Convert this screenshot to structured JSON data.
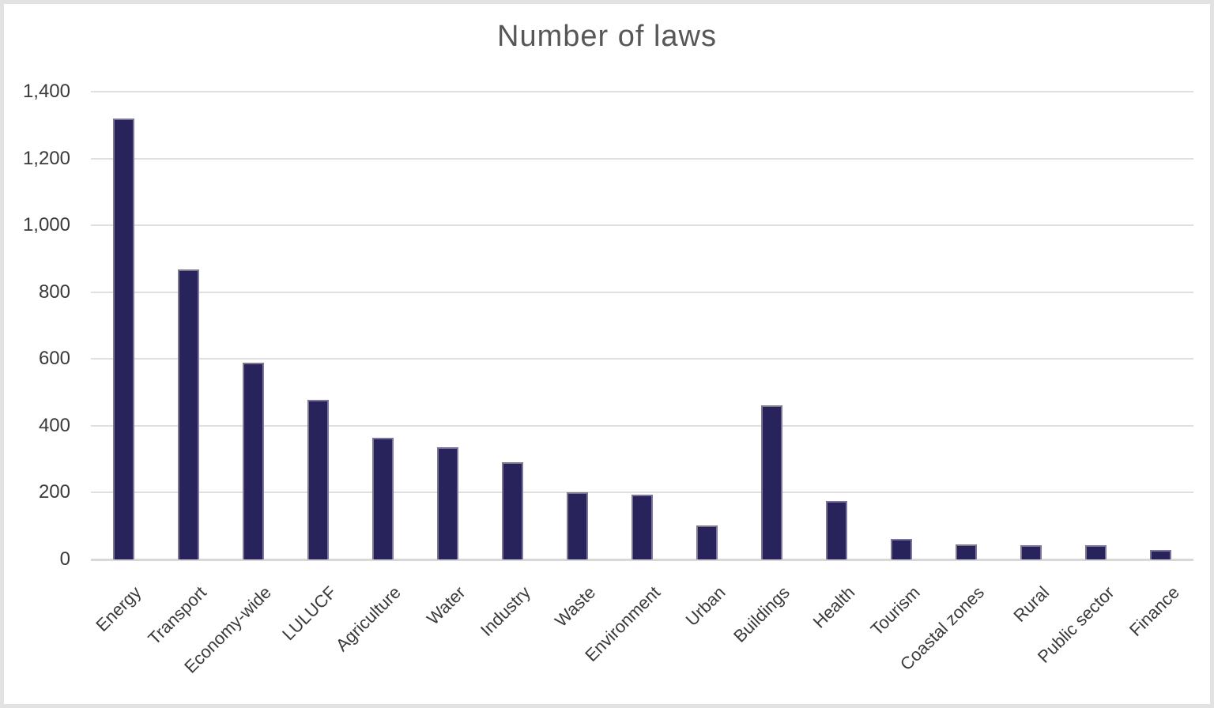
{
  "chart_data": {
    "type": "bar",
    "title": "Number of laws",
    "categories": [
      "Energy",
      "Transport",
      "Economy-wide",
      "LULUCF",
      "Agriculture",
      "Water",
      "Industry",
      "Waste",
      "Environment",
      "Urban",
      "Buildings",
      "Health",
      "Tourism",
      "Coastal zones",
      "Rural",
      "Public sector",
      "Finance"
    ],
    "values": [
      1320,
      867,
      590,
      477,
      364,
      335,
      291,
      200,
      194,
      102,
      460,
      175,
      61,
      45,
      43,
      43,
      29
    ],
    "xlabel": "",
    "ylabel": "",
    "ylim": [
      0,
      1400
    ],
    "yticks": [
      {
        "value": 1400,
        "label": "1,400"
      },
      {
        "value": 1200,
        "label": "1,200"
      },
      {
        "value": 1000,
        "label": "1,000"
      },
      {
        "value": 800,
        "label": "800"
      },
      {
        "value": 600,
        "label": "600"
      },
      {
        "value": 400,
        "label": "400"
      },
      {
        "value": 200,
        "label": "200"
      },
      {
        "value": 0,
        "label": "0"
      }
    ],
    "grid": true,
    "legend": false,
    "colors": {
      "bar_fill": "#29235C",
      "bar_border": "#A9A2C6",
      "gridline": "#E0E0E0",
      "axis_line": "#D8D8D8",
      "tick_label": "#3A3A3A",
      "title": "#575757",
      "background": "#FFFFFF",
      "frame_border": "#E2E2E2"
    }
  }
}
